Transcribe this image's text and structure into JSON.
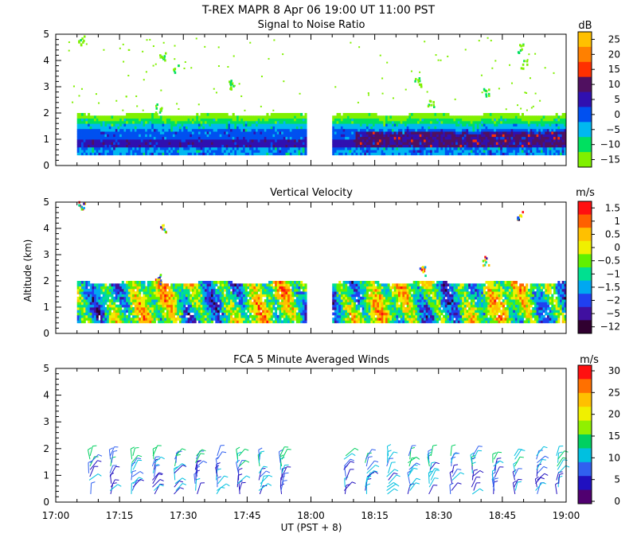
{
  "header": {
    "title": "T-REX  MAPR  8 Apr 06  19:00 UT  11:00  PST"
  },
  "x_axis": {
    "label": "UT  (PST + 8)",
    "ticks": [
      "17:00",
      "17:15",
      "17:30",
      "17:45",
      "18:00",
      "18:15",
      "18:30",
      "18:45",
      "19:00"
    ]
  },
  "shared_y_label": "Altitude (km)",
  "chart_data": [
    {
      "type": "heatmap",
      "title": "Signal to Noise Ratio",
      "units": "dB",
      "ylabel": "Altitude (km)",
      "xlim": [
        "17:00",
        "19:00"
      ],
      "ylim": [
        0,
        5
      ],
      "y_ticks": [
        "0",
        "1",
        "2",
        "3",
        "4",
        "5"
      ],
      "colorbar_labels": [
        "25",
        "20",
        "15",
        "10",
        "5",
        "0",
        "−5",
        "−10",
        "−15"
      ],
      "colorbar_colors": [
        "#ffc000",
        "#ff8000",
        "#ff3000",
        "#501060",
        "#3010b0",
        "#0050f0",
        "#00b8f0",
        "#00e060",
        "#80f000"
      ],
      "data_gap": [
        "17:59",
        "18:05"
      ],
      "layer_top_km": 1.9,
      "layer_bottom_km": 0.4
    },
    {
      "type": "heatmap",
      "title": "Vertical Velocity",
      "units": "m/s",
      "ylabel": "Altitude (km)",
      "xlim": [
        "17:00",
        "19:00"
      ],
      "ylim": [
        0,
        5
      ],
      "y_ticks": [
        "0",
        "1",
        "2",
        "3",
        "4",
        "5"
      ],
      "colorbar_labels": [
        "1.5",
        "1",
        "0.5",
        "0",
        "−0.5",
        "−1",
        "−1.5",
        "−2",
        "−5",
        "−12"
      ],
      "colorbar_colors": [
        "#ff1010",
        "#ff6000",
        "#ffc000",
        "#f0f000",
        "#60f000",
        "#00e090",
        "#00a8f0",
        "#2040f0",
        "#4010a0",
        "#300030"
      ],
      "data_gap": [
        "17:59",
        "18:05"
      ],
      "layer_top_km": 1.9,
      "layer_bottom_km": 0.4
    },
    {
      "type": "wind_barbs",
      "title": "FCA 5 Minute Averaged Winds",
      "units": "m/s",
      "ylabel": "Altitude (km)",
      "xlim": [
        "17:00",
        "19:00"
      ],
      "ylim": [
        0,
        5
      ],
      "y_ticks": [
        "0",
        "1",
        "2",
        "3",
        "4",
        "5"
      ],
      "colorbar_labels": [
        "30",
        "25",
        "20",
        "15",
        "10",
        "5",
        "0"
      ],
      "colorbar_colors": [
        "#ff1010",
        "#ff7000",
        "#ffc000",
        "#f0f000",
        "#90f000",
        "#00d060",
        "#00c0e0",
        "#3060f0",
        "#2010c0",
        "#500070"
      ],
      "profile_times": [
        "17:08",
        "17:13",
        "17:18",
        "17:23",
        "17:28",
        "17:33",
        "17:38",
        "17:43",
        "17:48",
        "17:53",
        "18:08",
        "18:13",
        "18:18",
        "18:23",
        "18:28",
        "18:33",
        "18:38",
        "18:43",
        "18:48",
        "18:53",
        "18:58"
      ]
    }
  ]
}
